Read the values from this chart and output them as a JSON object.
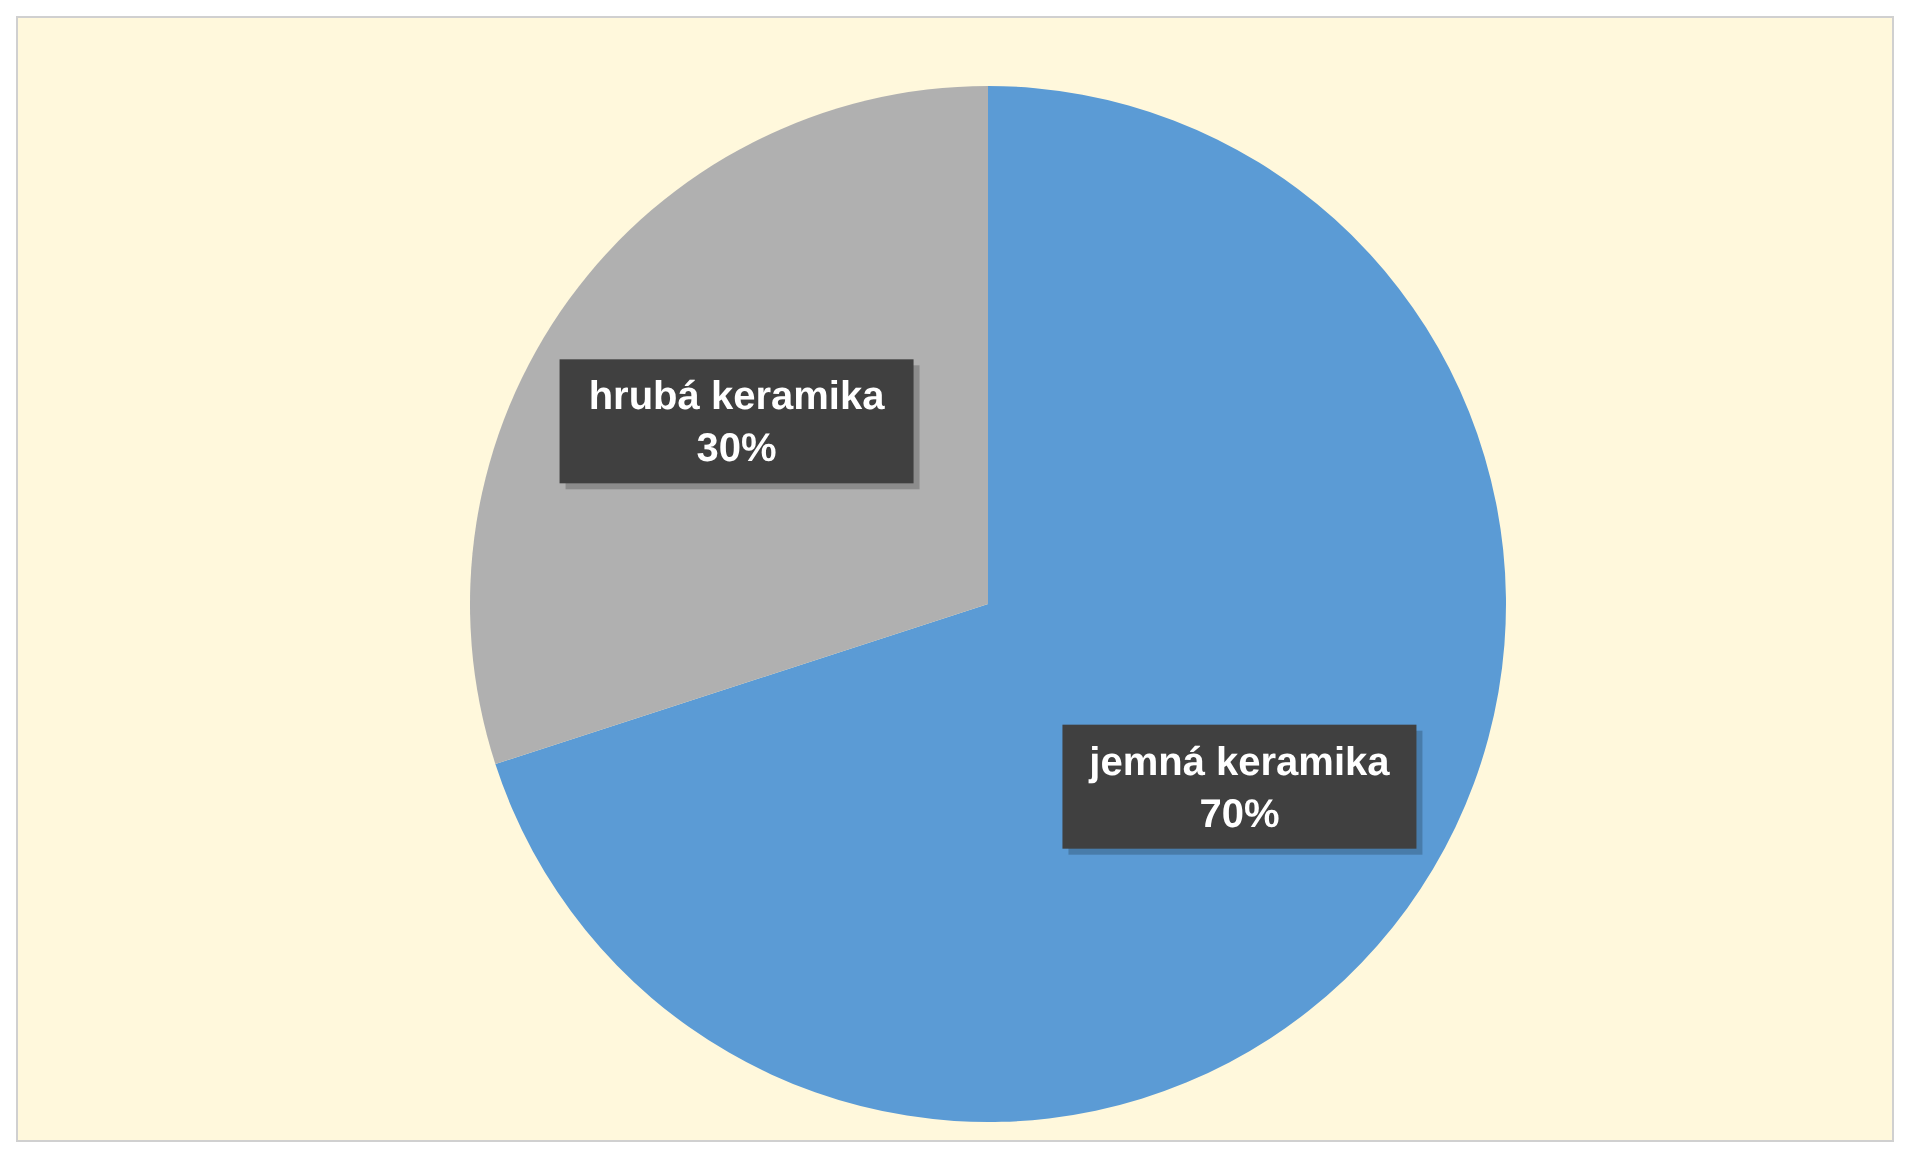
{
  "chart_data": {
    "type": "pie",
    "categories": [
      "jemná keramika",
      "hrubá keramika"
    ],
    "values": [
      70,
      30
    ],
    "colors": [
      "#5b9bd5",
      "#b0b0b0"
    ],
    "value_labels": [
      "70%",
      "30%"
    ],
    "legend": false
  }
}
